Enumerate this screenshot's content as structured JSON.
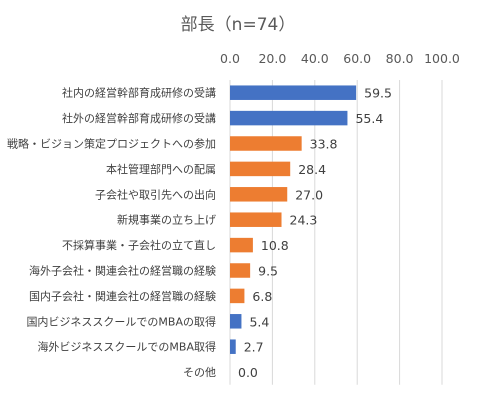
{
  "chart_data": {
    "type": "bar",
    "orientation": "horizontal",
    "title": "部長（n=74）",
    "xlim": [
      0,
      100
    ],
    "x_ticks": [
      "0.0",
      "20.0",
      "40.0",
      "60.0",
      "80.0",
      "100.0"
    ],
    "x_tick_values": [
      0,
      20,
      40,
      60,
      80,
      100
    ],
    "axis_position": "top",
    "grid": true,
    "categories": [
      "社内の経営幹部育成研修の受講",
      "社外の経営幹部育成研修の受講",
      "戦略・ビジョン策定プロジェクトへの参加",
      "本社管理部門への配属",
      "子会社や取引先への出向",
      "新規事業の立ち上げ",
      "不採算事業・子会社の立て直し",
      "海外子会社・関連会社の経営職の経験",
      "国内子会社・関連会社の経営職の経験",
      "国内ビジネススクールでのMBAの取得",
      "海外ビジネススクールでのMBA取得",
      "その他"
    ],
    "values": [
      59.5,
      55.4,
      33.8,
      28.4,
      27.0,
      24.3,
      10.8,
      9.5,
      6.8,
      5.4,
      2.7,
      0.0
    ],
    "value_labels": [
      "59.5",
      "55.4",
      "33.8",
      "28.4",
      "27.0",
      "24.3",
      "10.8",
      "9.5",
      "6.8",
      "5.4",
      "2.7",
      "0.0"
    ],
    "bar_colors": [
      "#4472c4",
      "#4472c4",
      "#ed7d31",
      "#ed7d31",
      "#ed7d31",
      "#ed7d31",
      "#ed7d31",
      "#ed7d31",
      "#ed7d31",
      "#4472c4",
      "#4472c4",
      "#4472c4"
    ]
  }
}
